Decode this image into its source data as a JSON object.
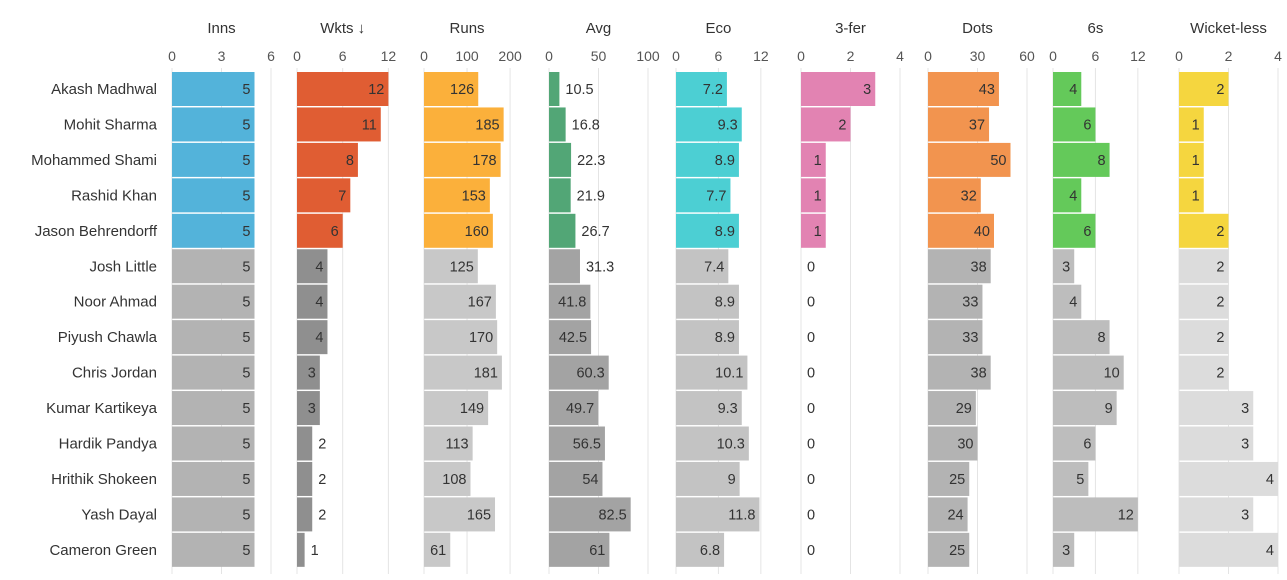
{
  "chart_data": {
    "type": "table",
    "players": [
      "Akash Madhwal",
      "Mohit Sharma",
      "Mohammed Shami",
      "Rashid Khan",
      "Jason Behrendorff",
      "Josh Little",
      "Noor Ahmad",
      "Piyush Chawla",
      "Chris Jordan",
      "Kumar Kartikeya",
      "Hardik Pandya",
      "Hrithik Shokeen",
      "Yash Dayal",
      "Cameron Green"
    ],
    "highlighted_count": 5,
    "columns": [
      {
        "title": "Inns",
        "max": 6,
        "ticks": [
          0,
          3,
          6
        ],
        "color": "#53b3da",
        "values": [
          5,
          5,
          5,
          5,
          5,
          5,
          5,
          5,
          5,
          5,
          5,
          5,
          5,
          5
        ],
        "labels": [
          "5",
          "5",
          "5",
          "5",
          "5",
          "5",
          "5",
          "5",
          "5",
          "5",
          "5",
          "5",
          "5",
          "5"
        ],
        "grey": "#b3b3b3"
      },
      {
        "title": "Wkts ↓",
        "max": 13,
        "ticks": [
          0,
          6,
          12
        ],
        "color": "#e05d33",
        "values": [
          12,
          11,
          8,
          7,
          6,
          4,
          4,
          4,
          3,
          3,
          2,
          2,
          2,
          1
        ],
        "labels": [
          "12",
          "11",
          "8",
          "7",
          "6",
          "4",
          "4",
          "4",
          "3",
          "3",
          "2",
          "2",
          "2",
          "1"
        ],
        "grey": "#8f8f8f"
      },
      {
        "title": "Runs",
        "max": 230,
        "ticks": [
          0,
          100,
          200
        ],
        "color": "#fbb03b",
        "values": [
          126,
          185,
          178,
          153,
          160,
          125,
          167,
          170,
          181,
          149,
          113,
          108,
          165,
          61
        ],
        "labels": [
          "126",
          "185",
          "178",
          "153",
          "160",
          "125",
          "167",
          "170",
          "181",
          "149",
          "113",
          "108",
          "165",
          "61"
        ],
        "grey": "#c8c8c8"
      },
      {
        "title": "Avg",
        "max": 100,
        "ticks": [
          0,
          50,
          100
        ],
        "color": "#52a676",
        "values": [
          10.5,
          16.8,
          22.3,
          21.9,
          26.7,
          31.3,
          41.8,
          42.5,
          60.3,
          49.7,
          56.5,
          54,
          82.5,
          61
        ],
        "labels": [
          "10.5",
          "16.8",
          "22.3",
          "21.9",
          "26.7",
          "31.3",
          "41.8",
          "42.5",
          "60.3",
          "49.7",
          "56.5",
          "54",
          "82.5",
          "61"
        ],
        "grey": "#a3a3a3"
      },
      {
        "title": "Eco",
        "max": 14,
        "ticks": [
          0,
          6,
          12
        ],
        "color": "#4ccfd3",
        "values": [
          7.2,
          9.3,
          8.9,
          7.7,
          8.9,
          7.4,
          8.9,
          8.9,
          10.1,
          9.3,
          10.3,
          9,
          11.8,
          6.8
        ],
        "labels": [
          "7.2",
          "9.3",
          "8.9",
          "7.7",
          "8.9",
          "7.4",
          "8.9",
          "8.9",
          "10.1",
          "9.3",
          "10.3",
          "9",
          "11.8",
          "6.8"
        ],
        "grey": "#c3c3c3"
      },
      {
        "title": "3-fer",
        "max": 4,
        "ticks": [
          0,
          2,
          4
        ],
        "color": "#e283b2",
        "values": [
          3,
          2,
          1,
          1,
          1,
          0,
          0,
          0,
          0,
          0,
          0,
          0,
          0,
          0
        ],
        "labels": [
          "3",
          "2",
          "1",
          "1",
          "1",
          "0",
          "0",
          "0",
          "0",
          "0",
          "0",
          "0",
          "0",
          "0"
        ],
        "grey": "#c3c3c3"
      },
      {
        "title": "Dots",
        "max": 60,
        "ticks": [
          0,
          30,
          60
        ],
        "color": "#f2944f",
        "values": [
          43,
          37,
          50,
          32,
          40,
          38,
          33,
          33,
          38,
          29,
          30,
          25,
          24,
          25
        ],
        "labels": [
          "43",
          "37",
          "50",
          "32",
          "40",
          "38",
          "33",
          "33",
          "38",
          "29",
          "30",
          "25",
          "24",
          "25"
        ],
        "grey": "#b3b3b3"
      },
      {
        "title": "6s",
        "max": 14,
        "ticks": [
          0,
          6,
          12
        ],
        "color": "#64c95a",
        "values": [
          4,
          6,
          8,
          4,
          6,
          3,
          4,
          8,
          10,
          9,
          6,
          5,
          12,
          3
        ],
        "labels": [
          "4",
          "6",
          "8",
          "4",
          "6",
          "3",
          "4",
          "8",
          "10",
          "9",
          "6",
          "5",
          "12",
          "3"
        ],
        "grey": "#bdbdbd"
      },
      {
        "title": "Wicket-less",
        "max": 4,
        "ticks": [
          0,
          2,
          4
        ],
        "color": "#f5d63f",
        "values": [
          2,
          1,
          1,
          1,
          2,
          2,
          2,
          2,
          2,
          3,
          3,
          4,
          3,
          4
        ],
        "labels": [
          "2",
          "1",
          "1",
          "1",
          "2",
          "2",
          "2",
          "2",
          "2",
          "3",
          "3",
          "4",
          "3",
          "4"
        ],
        "grey": "#dcdcdc"
      }
    ]
  }
}
